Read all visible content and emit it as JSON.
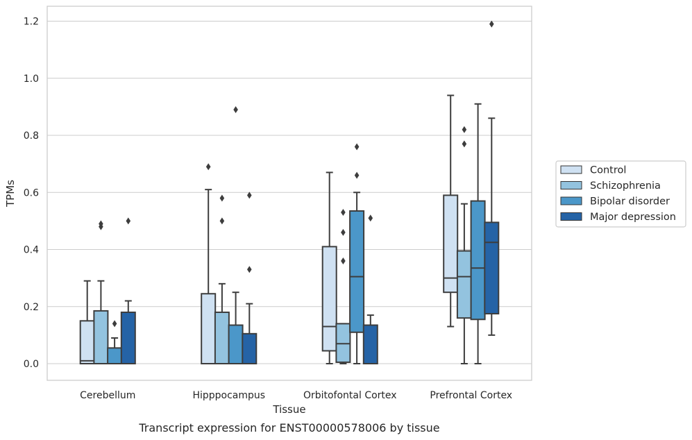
{
  "caption": "Transcript expression for ENST00000578006 by tissue",
  "chart_data": {
    "type": "box",
    "title": "",
    "xlabel": "Tissue",
    "ylabel": "TPMs",
    "ylim": [
      -0.058,
      1.25
    ],
    "yticks": [
      0.0,
      0.2,
      0.4,
      0.6,
      0.8,
      1.0,
      1.2
    ],
    "ytick_labels": [
      "0.0",
      "0.2",
      "0.4",
      "0.6",
      "0.8",
      "1.0",
      "1.2"
    ],
    "grid": "horizontal",
    "legend_position": "right",
    "categories": [
      "Cerebellum",
      "Hipppocampus",
      "Orbitofontal Cortex",
      "Prefrontal Cortex"
    ],
    "series": [
      {
        "name": "Control",
        "color": "#cfe1f2",
        "boxes": [
          {
            "whislo": 0.0,
            "q1": 0.0,
            "med": 0.01,
            "q3": 0.15,
            "whishi": 0.29,
            "fliers": []
          },
          {
            "whislo": 0.0,
            "q1": 0.0,
            "med": 0.0,
            "q3": 0.245,
            "whishi": 0.61,
            "fliers": [
              0.69
            ]
          },
          {
            "whislo": 0.0,
            "q1": 0.045,
            "med": 0.13,
            "q3": 0.41,
            "whishi": 0.67,
            "fliers": []
          },
          {
            "whislo": 0.13,
            "q1": 0.25,
            "med": 0.3,
            "q3": 0.59,
            "whishi": 0.94,
            "fliers": []
          }
        ]
      },
      {
        "name": "Schizophrenia",
        "color": "#93c3df",
        "boxes": [
          {
            "whislo": 0.0,
            "q1": 0.0,
            "med": 0.0,
            "q3": 0.185,
            "whishi": 0.29,
            "fliers": [
              0.48,
              0.49
            ]
          },
          {
            "whislo": 0.0,
            "q1": 0.0,
            "med": 0.0,
            "q3": 0.18,
            "whishi": 0.28,
            "fliers": [
              0.5,
              0.58
            ]
          },
          {
            "whislo": 0.0,
            "q1": 0.005,
            "med": 0.07,
            "q3": 0.14,
            "whishi": 0.14,
            "fliers": [
              0.36,
              0.46,
              0.53
            ]
          },
          {
            "whislo": 0.0,
            "q1": 0.16,
            "med": 0.305,
            "q3": 0.395,
            "whishi": 0.56,
            "fliers": [
              0.77,
              0.82
            ]
          }
        ]
      },
      {
        "name": "Bipolar disorder",
        "color": "#4b97c9",
        "boxes": [
          {
            "whislo": 0.0,
            "q1": 0.0,
            "med": 0.0,
            "q3": 0.055,
            "whishi": 0.09,
            "fliers": [
              0.14
            ]
          },
          {
            "whislo": 0.0,
            "q1": 0.0,
            "med": 0.0,
            "q3": 0.135,
            "whishi": 0.25,
            "fliers": [
              0.89
            ]
          },
          {
            "whislo": 0.0,
            "q1": 0.11,
            "med": 0.305,
            "q3": 0.535,
            "whishi": 0.6,
            "fliers": [
              0.66,
              0.76
            ]
          },
          {
            "whislo": 0.0,
            "q1": 0.155,
            "med": 0.335,
            "q3": 0.57,
            "whishi": 0.91,
            "fliers": []
          }
        ]
      },
      {
        "name": "Major depression",
        "color": "#2563a6",
        "boxes": [
          {
            "whislo": 0.0,
            "q1": 0.0,
            "med": 0.0,
            "q3": 0.18,
            "whishi": 0.22,
            "fliers": [
              0.5
            ]
          },
          {
            "whislo": 0.0,
            "q1": 0.0,
            "med": 0.0,
            "q3": 0.105,
            "whishi": 0.21,
            "fliers": [
              0.33,
              0.59
            ]
          },
          {
            "whislo": 0.0,
            "q1": 0.0,
            "med": 0.0,
            "q3": 0.135,
            "whishi": 0.17,
            "fliers": [
              0.51
            ]
          },
          {
            "whislo": 0.1,
            "q1": 0.175,
            "med": 0.425,
            "q3": 0.495,
            "whishi": 0.86,
            "fliers": [
              1.19
            ]
          }
        ]
      }
    ]
  }
}
